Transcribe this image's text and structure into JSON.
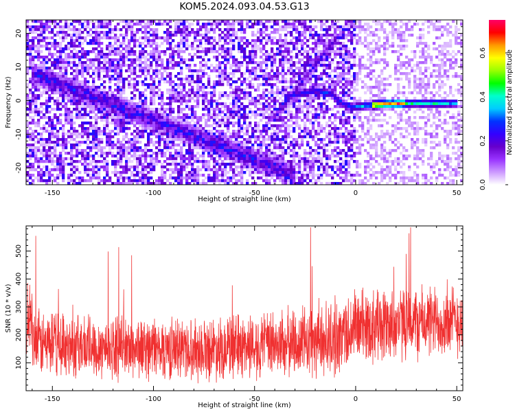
{
  "title": "KOM5.2024.093.04.53.G13",
  "chart_data": [
    {
      "type": "heatmap",
      "xlabel": "Height of straight line (km)",
      "ylabel": "Frequency (Hz)",
      "xlim": [
        -163,
        53
      ],
      "ylim": [
        -25,
        24
      ],
      "xticks": [
        -150,
        -100,
        -50,
        0,
        50
      ],
      "yticks": [
        -20,
        -10,
        0,
        10,
        20
      ],
      "colorbar": {
        "label": "Normalized spectral amplitude",
        "range": [
          0,
          0.75
        ],
        "ticks": [
          0.0,
          0.2,
          0.4,
          0.6
        ],
        "tick_labels": [
          "0.0",
          "0.2",
          "0.4",
          "0.6"
        ],
        "colormap": [
          "#ffffff",
          "#cc99ff",
          "#9933ff",
          "#6600cc",
          "#3300ff",
          "#0033ff",
          "#00ccff",
          "#00ffcc",
          "#00ff00",
          "#99ff00",
          "#ffff00",
          "#ff9900",
          "#ff0000",
          "#ff0066"
        ]
      },
      "features": [
        {
          "name": "diagonal streak",
          "x_start": -160,
          "x_end": -30,
          "y_start": 8,
          "y_end": -22,
          "amplitude": 0.25
        },
        {
          "name": "rising trace",
          "x_start": -40,
          "x_end": -8,
          "y_start": -5,
          "y_end": 20,
          "amplitude": 0.22
        },
        {
          "name": "signal track",
          "points": [
            [
              -35,
              1
            ],
            [
              -20,
              3
            ],
            [
              -12,
              2
            ],
            [
              -6,
              -1
            ],
            [
              -2,
              -2
            ],
            [
              5,
              -1.5
            ],
            [
              15,
              -1
            ],
            [
              30,
              -0.8
            ],
            [
              50,
              -0.8
            ]
          ],
          "amplitude_peak": 0.75
        }
      ]
    },
    {
      "type": "line",
      "xlabel": "Height of straight line (km)",
      "ylabel": "SNR (10 * v/v)",
      "xlim": [
        -163,
        53
      ],
      "ylim": [
        0,
        590
      ],
      "xticks": [
        -150,
        -100,
        -50,
        0,
        50
      ],
      "yticks": [
        100,
        200,
        300,
        400,
        500
      ],
      "line_color": "#f03030",
      "sample_step_km": 0.1,
      "envelope": {
        "x": [
          -160,
          -120,
          -80,
          -40,
          -10,
          0,
          20,
          50
        ],
        "mean": [
          170,
          155,
          150,
          165,
          185,
          230,
          240,
          250
        ],
        "spread": [
          140,
          130,
          130,
          140,
          160,
          160,
          155,
          150
        ]
      }
    }
  ]
}
